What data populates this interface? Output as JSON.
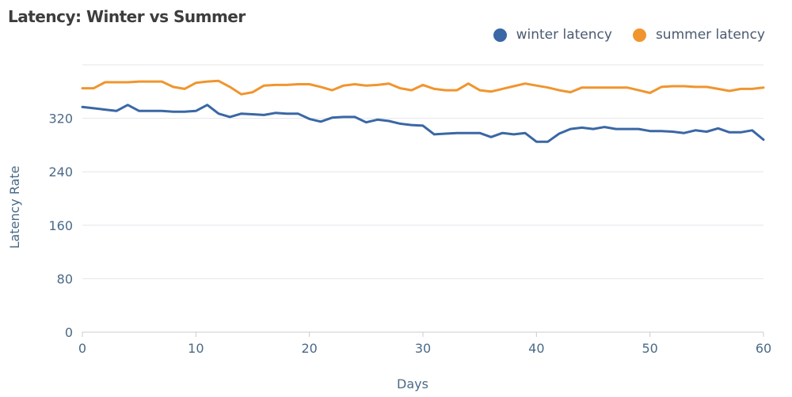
{
  "chart_data": {
    "type": "line",
    "title": "Latency: Winter vs Summer",
    "xlabel": "Days",
    "ylabel": "Latency Rate",
    "xlim": [
      0,
      60
    ],
    "ylim": [
      0,
      400
    ],
    "x_ticks": [
      0,
      10,
      20,
      30,
      40,
      50,
      60
    ],
    "y_ticks": [
      0,
      80,
      160,
      240,
      320
    ],
    "grid": true,
    "legend_position": "top-right",
    "series": [
      {
        "name": "winter latency",
        "color": "#3a67a5",
        "points": [
          [
            0,
            337
          ],
          [
            1,
            335
          ],
          [
            2,
            333
          ],
          [
            3,
            331
          ],
          [
            4,
            340
          ],
          [
            5,
            331
          ],
          [
            6,
            331
          ],
          [
            7,
            331
          ],
          [
            8,
            330
          ],
          [
            9,
            330
          ],
          [
            10,
            331
          ],
          [
            11,
            340
          ],
          [
            12,
            327
          ],
          [
            13,
            322
          ],
          [
            14,
            327
          ],
          [
            15,
            326
          ],
          [
            16,
            325
          ],
          [
            17,
            328
          ],
          [
            18,
            327
          ],
          [
            19,
            327
          ],
          [
            20,
            319
          ],
          [
            21,
            315
          ],
          [
            22,
            321
          ],
          [
            23,
            322
          ],
          [
            24,
            322
          ],
          [
            25,
            314
          ],
          [
            26,
            318
          ],
          [
            27,
            316
          ],
          [
            28,
            312
          ],
          [
            29,
            310
          ],
          [
            30,
            309
          ],
          [
            31,
            296
          ],
          [
            32,
            297
          ],
          [
            33,
            298
          ],
          [
            34,
            298
          ],
          [
            35,
            298
          ],
          [
            36,
            292
          ],
          [
            37,
            298
          ],
          [
            38,
            296
          ],
          [
            39,
            298
          ],
          [
            40,
            285
          ],
          [
            41,
            285
          ],
          [
            42,
            297
          ],
          [
            43,
            304
          ],
          [
            44,
            306
          ],
          [
            45,
            304
          ],
          [
            46,
            307
          ],
          [
            47,
            304
          ],
          [
            48,
            304
          ],
          [
            49,
            304
          ],
          [
            50,
            301
          ],
          [
            51,
            301
          ],
          [
            52,
            300
          ],
          [
            53,
            298
          ],
          [
            54,
            302
          ],
          [
            55,
            300
          ],
          [
            56,
            305
          ],
          [
            57,
            299
          ],
          [
            58,
            299
          ],
          [
            59,
            302
          ],
          [
            60,
            288
          ]
        ]
      },
      {
        "name": "summer latency",
        "color": "#f0952e",
        "points": [
          [
            0,
            365
          ],
          [
            1,
            365
          ],
          [
            2,
            374
          ],
          [
            3,
            374
          ],
          [
            4,
            374
          ],
          [
            5,
            375
          ],
          [
            6,
            375
          ],
          [
            7,
            375
          ],
          [
            8,
            367
          ],
          [
            9,
            364
          ],
          [
            10,
            373
          ],
          [
            11,
            375
          ],
          [
            12,
            376
          ],
          [
            13,
            367
          ],
          [
            14,
            356
          ],
          [
            15,
            359
          ],
          [
            16,
            369
          ],
          [
            17,
            370
          ],
          [
            18,
            370
          ],
          [
            19,
            371
          ],
          [
            20,
            371
          ],
          [
            21,
            367
          ],
          [
            22,
            362
          ],
          [
            23,
            369
          ],
          [
            24,
            371
          ],
          [
            25,
            369
          ],
          [
            26,
            370
          ],
          [
            27,
            372
          ],
          [
            28,
            365
          ],
          [
            29,
            362
          ],
          [
            30,
            370
          ],
          [
            31,
            364
          ],
          [
            32,
            362
          ],
          [
            33,
            362
          ],
          [
            34,
            372
          ],
          [
            35,
            362
          ],
          [
            36,
            360
          ],
          [
            37,
            364
          ],
          [
            38,
            368
          ],
          [
            39,
            372
          ],
          [
            40,
            369
          ],
          [
            41,
            366
          ],
          [
            42,
            362
          ],
          [
            43,
            359
          ],
          [
            44,
            366
          ],
          [
            45,
            366
          ],
          [
            46,
            366
          ],
          [
            47,
            366
          ],
          [
            48,
            366
          ],
          [
            49,
            362
          ],
          [
            50,
            358
          ],
          [
            51,
            367
          ],
          [
            52,
            368
          ],
          [
            53,
            368
          ],
          [
            54,
            367
          ],
          [
            55,
            367
          ],
          [
            56,
            364
          ],
          [
            57,
            361
          ],
          [
            58,
            364
          ],
          [
            59,
            364
          ],
          [
            60,
            366
          ]
        ]
      }
    ]
  }
}
